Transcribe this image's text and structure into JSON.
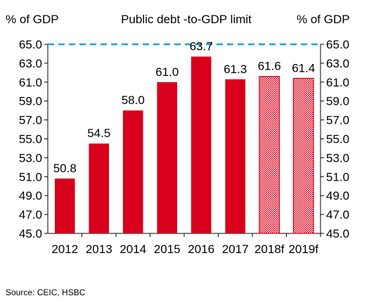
{
  "chart_data": {
    "type": "bar",
    "title": "Public debt -to-GDP limit",
    "ylabel_left": "% of GDP",
    "ylabel_right": "% of GDP",
    "categories": [
      "2012",
      "2013",
      "2014",
      "2015",
      "2016",
      "2017",
      "2018f",
      "2019f"
    ],
    "values": [
      50.8,
      54.5,
      58.0,
      61.0,
      63.7,
      61.3,
      61.6,
      61.4
    ],
    "value_labels": [
      "50.8",
      "54.5",
      "58.0",
      "61.0",
      "63.7",
      "61.3",
      "61.6",
      "61.4"
    ],
    "forecast": [
      false,
      false,
      false,
      false,
      false,
      false,
      true,
      true
    ],
    "ylim": [
      45.0,
      65.0
    ],
    "yticks": [
      "65.0",
      "63.0",
      "61.0",
      "59.0",
      "57.0",
      "55.0",
      "53.0",
      "51.0",
      "49.0",
      "47.0",
      "45.0"
    ],
    "ytick_values": [
      65,
      63,
      61,
      59,
      57,
      55,
      53,
      51,
      49,
      47,
      45
    ],
    "limit_line": 65.0,
    "grid": false,
    "colors": {
      "bar": "#d8001a",
      "forecast": "#d8001a",
      "limit_line": "#1aa0e6"
    }
  },
  "source": "Source: CEIC, HSBC"
}
